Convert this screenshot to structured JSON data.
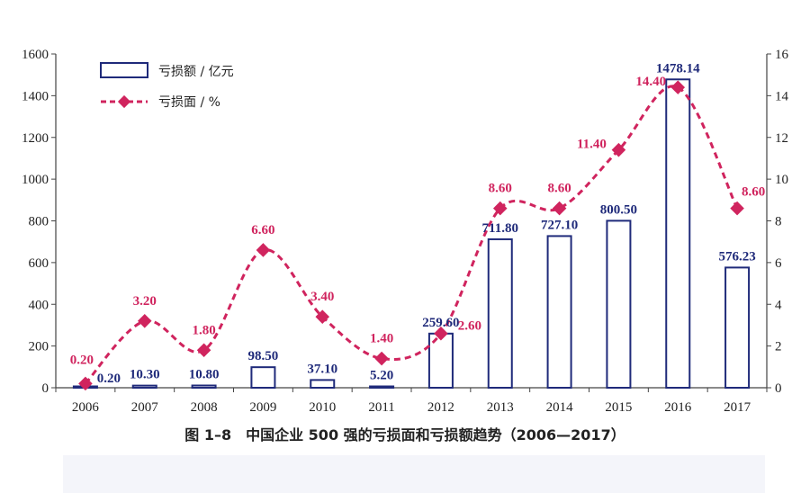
{
  "chart_data": {
    "type": "bar+line",
    "categories": [
      "2006",
      "2007",
      "2008",
      "2009",
      "2010",
      "2011",
      "2012",
      "2013",
      "2014",
      "2015",
      "2016",
      "2017"
    ],
    "series": [
      {
        "name": "亏损额 / 亿元",
        "type": "bar",
        "axis": "left",
        "values": [
          0.2,
          10.3,
          10.8,
          98.5,
          37.1,
          5.2,
          259.6,
          711.8,
          727.1,
          800.5,
          1478.14,
          576.23
        ],
        "labels": [
          "0.20",
          "10.30",
          "10.80",
          "98.50",
          "37.10",
          "5.20",
          "259.60",
          "711.80",
          "727.10",
          "800.50",
          "1478.14",
          "576.23"
        ],
        "color": "#1f2a7a"
      },
      {
        "name": "亏损面 / %",
        "type": "line",
        "axis": "right",
        "values": [
          0.2,
          3.2,
          1.8,
          6.6,
          3.4,
          1.4,
          2.6,
          8.6,
          8.6,
          11.4,
          14.4,
          8.6
        ],
        "labels": [
          "0.20",
          "3.20",
          "1.80",
          "6.60",
          "3.40",
          "1.40",
          "2.60",
          "8.60",
          "8.60",
          "11.40",
          "14.40",
          "8.60"
        ],
        "color": "#d0245e"
      }
    ],
    "yleft": {
      "min": 0,
      "max": 1600,
      "ticks": [
        "0",
        "200",
        "400",
        "600",
        "800",
        "1000",
        "1200",
        "1400",
        "1600"
      ]
    },
    "yright": {
      "min": 0,
      "max": 16,
      "ticks": [
        "0",
        "2",
        "4",
        "6",
        "8",
        "10",
        "12",
        "14",
        "16"
      ]
    },
    "legend_position": "top-left",
    "grid": false
  },
  "caption": "图 1–8　中国企业 500 强的亏损面和亏损额趋势（2006—2017）"
}
